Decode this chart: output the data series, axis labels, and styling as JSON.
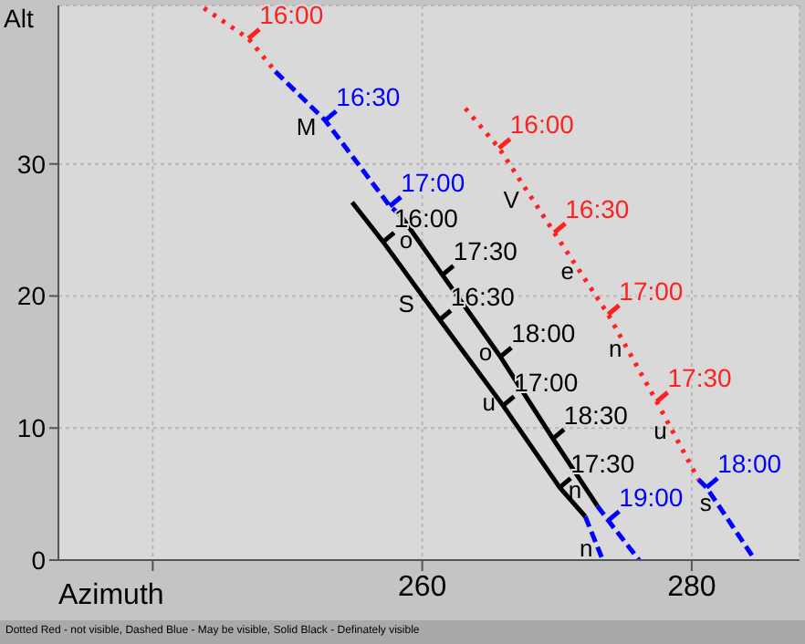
{
  "chart_data": {
    "type": "line",
    "xlabel": "Azimuth",
    "ylabel": "Alt",
    "xlim": [
      233,
      288
    ],
    "ylim": [
      0,
      42
    ],
    "xticks": [
      {
        "value": 240,
        "label": null
      },
      260,
      280
    ],
    "yticks": [
      0,
      10,
      20,
      30
    ],
    "grid": true,
    "series": [
      {
        "color": "#ff2020",
        "line_style": "dotted",
        "x": [
          243.8,
          247.1,
          249.1
        ],
        "values": [
          41.8,
          39.5,
          37.0
        ]
      },
      {
        "color": "#0000ff",
        "line_style": "dashed",
        "x": [
          249.1,
          252.8,
          257.6,
          258.4
        ],
        "values": [
          37.0,
          33.3,
          26.8,
          26.1
        ]
      },
      {
        "color": "#000000",
        "line_style": "solid",
        "x": [
          258.4,
          261.5,
          265.8,
          269.7,
          273.0
        ],
        "values": [
          26.1,
          21.6,
          15.4,
          9.2,
          4.1
        ]
      },
      {
        "color": "#0000ff",
        "line_style": "dashed",
        "x": [
          273.0,
          273.8,
          276.1
        ],
        "values": [
          4.1,
          3.0,
          0
        ]
      },
      {
        "color": "#000000",
        "line_style": "solid",
        "x": [
          254.8,
          257.1,
          261.3,
          266.0,
          270.2,
          272.1
        ],
        "values": [
          27.1,
          24.1,
          18.2,
          11.7,
          5.5,
          3.3
        ]
      },
      {
        "color": "#0000ff",
        "line_style": "dashed",
        "x": [
          272.1,
          273.4
        ],
        "values": [
          3.3,
          0
        ]
      },
      {
        "color": "#ff2020",
        "line_style": "dotted",
        "x": [
          263.2,
          265.7,
          269.8,
          273.8,
          277.4,
          280.5
        ],
        "values": [
          34.2,
          31.2,
          24.8,
          18.6,
          12.0,
          6.1
        ]
      },
      {
        "color": "#0000ff",
        "line_style": "dashed",
        "x": [
          280.5,
          281.1,
          284.7
        ],
        "values": [
          6.1,
          5.5,
          0
        ]
      }
    ],
    "annotations": [
      {
        "text": "16:00",
        "x": 247.1,
        "y": 39.5
      },
      {
        "text": "16:30",
        "x": 252.8,
        "y": 33.3
      },
      {
        "text": "17:00",
        "x": 257.6,
        "y": 26.8
      },
      {
        "text": "17:30",
        "x": 261.5,
        "y": 21.6
      },
      {
        "text": "18:00",
        "x": 265.8,
        "y": 15.4
      },
      {
        "text": "18:30",
        "x": 269.7,
        "y": 9.2
      },
      {
        "text": "19:00",
        "x": 273.8,
        "y": 3.0
      },
      {
        "text": "16:00",
        "x": 257.1,
        "y": 24.1
      },
      {
        "text": "16:30",
        "x": 261.3,
        "y": 18.2
      },
      {
        "text": "17:00",
        "x": 266.0,
        "y": 11.7
      },
      {
        "text": "17:30",
        "x": 270.2,
        "y": 5.5
      },
      {
        "text": "16:00",
        "x": 265.7,
        "y": 31.2
      },
      {
        "text": "16:30",
        "x": 269.8,
        "y": 24.8
      },
      {
        "text": "17:00",
        "x": 273.8,
        "y": 18.6
      },
      {
        "text": "17:30",
        "x": 277.4,
        "y": 12.0
      },
      {
        "text": "18:00",
        "x": 281.1,
        "y": 5.5
      },
      {
        "text": "M",
        "x": 252.8,
        "y": 33.3
      },
      {
        "text": "o",
        "x": 259.64,
        "y": 24.3
      },
      {
        "text": "o",
        "x": 265.52,
        "y": 15.8
      },
      {
        "text": "n",
        "x": 272.16,
        "y": 5.4
      },
      {
        "text": "S",
        "x": 260.09,
        "y": 19.9
      },
      {
        "text": "u",
        "x": 265.78,
        "y": 12.0
      },
      {
        "text": "n",
        "x": 273.0,
        "y": 1.0
      },
      {
        "text": "V",
        "x": 267.88,
        "y": 27.8
      },
      {
        "text": "e",
        "x": 271.61,
        "y": 22.0
      },
      {
        "text": "n",
        "x": 275.16,
        "y": 16.1
      },
      {
        "text": "u",
        "x": 278.5,
        "y": 9.9
      },
      {
        "text": "s",
        "x": 281.82,
        "y": 4.4
      },
      "Dotted Red - not visible, Dashed Blue - May be visible, Solid Black - Definately visible"
    ]
  }
}
